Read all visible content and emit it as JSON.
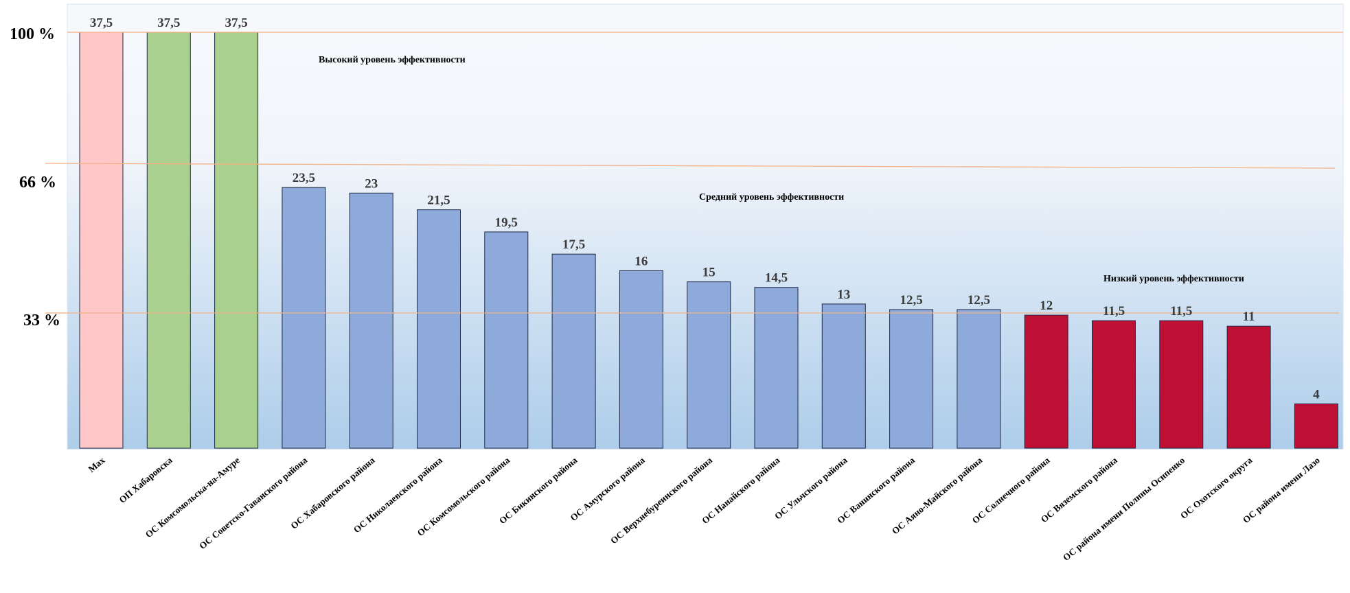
{
  "chart_data": {
    "type": "bar",
    "categories": [
      "Max",
      "ОП Хабаровска",
      "ОС Комсомольска-на-Амуре",
      "ОС Советско-Гаванского района",
      "ОС Хабаровского района",
      "ОС Николаевского района",
      "ОС Комсомольского района",
      "ОС Бикинского района",
      "ОС Амурского района",
      "ОС Верхнебуреинского района",
      "ОС Нанайского района",
      "ОС Ульчского района",
      "ОС Ванинского района",
      "ОС Аяно-Майского района",
      "ОС Солнечного района",
      "ОС Вяземского района",
      "ОС района имени Полины Осипенко",
      "ОС Охотского округа",
      "ОС района имени Лазо"
    ],
    "values": [
      37.5,
      37.5,
      37.5,
      23.5,
      23,
      21.5,
      19.5,
      17.5,
      16,
      15,
      14.5,
      13,
      12.5,
      12.5,
      12,
      11.5,
      11.5,
      11,
      4
    ],
    "value_labels": [
      "37,5",
      "37,5",
      "37,5",
      "23,5",
      "23",
      "21,5",
      "19,5",
      "17,5",
      "16",
      "15",
      "14,5",
      "13",
      "12,5",
      "12,5",
      "12",
      "11,5",
      "11,5",
      "11",
      "4"
    ],
    "bar_colors": [
      "#ffc7c7",
      "#a9d08e",
      "#a9d08e",
      "#8eaadb",
      "#8eaadb",
      "#8eaadb",
      "#8eaadb",
      "#8eaadb",
      "#8eaadb",
      "#8eaadb",
      "#8eaadb",
      "#8eaadb",
      "#8eaadb",
      "#8eaadb",
      "#be0f34",
      "#be0f34",
      "#be0f34",
      "#be0f34",
      "#be0f34"
    ],
    "ylim": [
      0,
      37.5
    ],
    "threshold_lines": [
      {
        "label": "100 %",
        "value": 37.5
      },
      {
        "label": "66 %",
        "value": 24.75
      },
      {
        "label": "33 %",
        "value": 12.375
      }
    ],
    "zone_labels": [
      "Высокий уровень эффективности",
      "Средний уровень эффективности",
      "Низкий уровень эффективности"
    ],
    "threshold_line_color": "#f4b183",
    "background_gradient": [
      "#f7f9fc",
      "#adcdea"
    ],
    "grid": false,
    "legend": "none"
  }
}
